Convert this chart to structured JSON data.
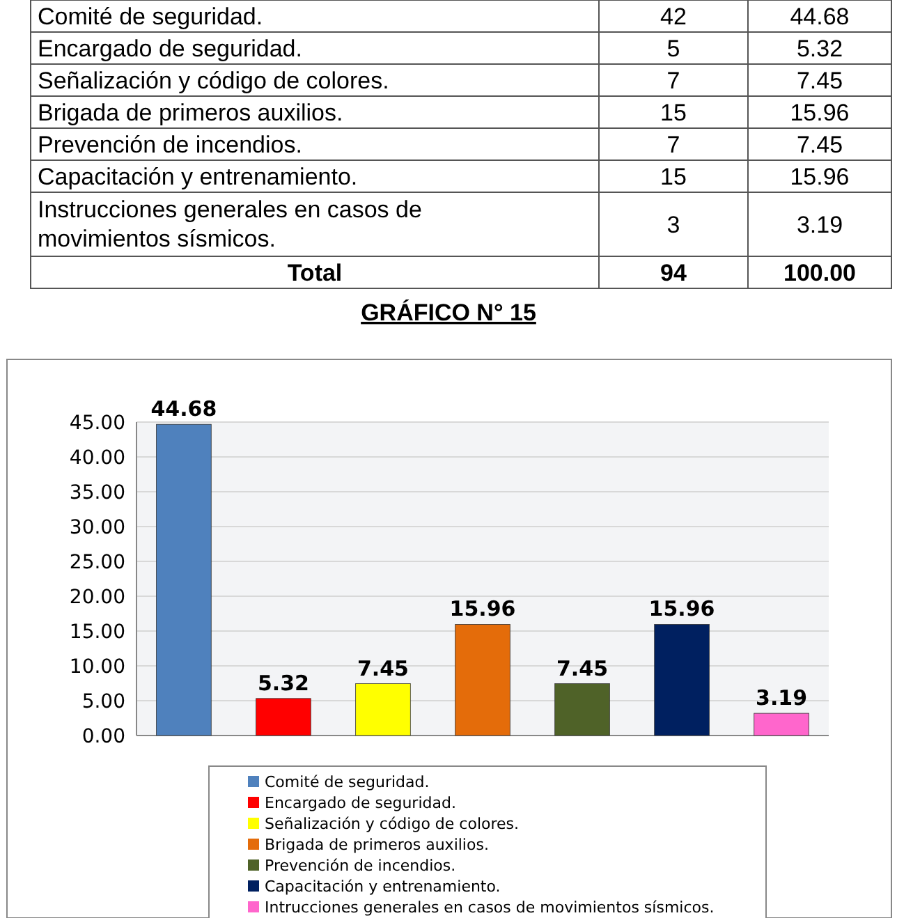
{
  "chart_data": [
    {
      "type": "other",
      "categories": [
        "Comité de seguridad.",
        "Encargado de seguridad.",
        "Señalización y código de colores.",
        "Brigada de primeros auxilios.",
        "Prevención de incendios.",
        "Capacitación y entrenamiento.",
        "Instrucciones generales en casos de movimientos sísmicos.",
        "Total"
      ],
      "annotations": [
        "42",
        "44.68",
        "5",
        "5.32",
        "7",
        "7.45",
        "15",
        "15.96",
        "7",
        "7.45",
        "15",
        "15.96",
        "3",
        "3.19",
        "94",
        "100.00"
      ]
    },
    {
      "type": "bar",
      "title": "GRÁFICO N° 15",
      "categories": [
        null
      ],
      "series": [
        {
          "name": "Comité de seguridad.",
          "color": "#4f81bd",
          "values": [
            44.68
          ]
        },
        {
          "name": "Encargado de seguridad.",
          "color": "#ff0000",
          "values": [
            5.32
          ]
        },
        {
          "name": "Señalización y código de colores.",
          "color": "#ffff00",
          "values": [
            7.45
          ]
        },
        {
          "name": "Brigada de primeros auxilios.",
          "color": "#e46c0a",
          "values": [
            15.96
          ]
        },
        {
          "name": "Prevención de incendios.",
          "color": "#4f6228",
          "values": [
            7.45
          ]
        },
        {
          "name": "Capacitación y entrenamiento.",
          "color": "#002060",
          "values": [
            15.96
          ]
        },
        {
          "name": "Intrucciones generales en casos de movimientos sísmicos.",
          "color": "#ff66cc",
          "values": [
            3.19
          ]
        }
      ],
      "ylim": [
        0,
        45
      ],
      "yticks": [
        {
          "value": 0,
          "label": "0.00"
        },
        {
          "value": 5,
          "label": "5.00"
        },
        {
          "value": 10,
          "label": "10.00"
        },
        {
          "value": 15,
          "label": "15.00"
        },
        {
          "value": 20,
          "label": "20.00"
        },
        {
          "value": 25,
          "label": "25.00"
        },
        {
          "value": 30,
          "label": "30.00"
        },
        {
          "value": 35,
          "label": "35.00"
        },
        {
          "value": 40,
          "label": "40.00"
        },
        {
          "value": 45,
          "label": "45.00"
        }
      ],
      "grid": "y",
      "data_labels": true,
      "legend": "bottom"
    }
  ]
}
